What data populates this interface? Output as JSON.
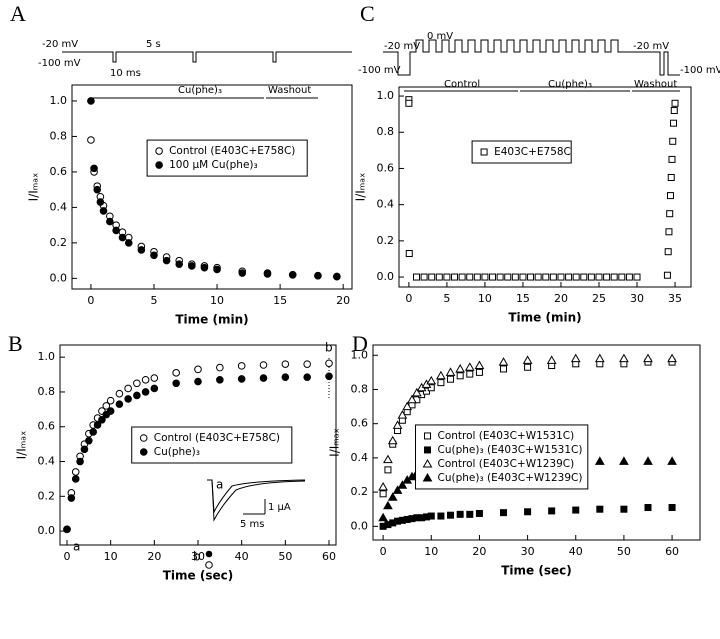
{
  "chart_data": [
    {
      "type": "scatter",
      "label": "A",
      "xlabel": "Time (min)",
      "ylabel": "I/Iₘₐₓ",
      "xlim": [
        -1.5,
        20.7
      ],
      "ylim": [
        -0.06,
        1.09
      ],
      "xticks": [
        0,
        5,
        10,
        15,
        20
      ],
      "yticks": [
        {
          "value": 0,
          "label": "0.0"
        },
        0.2,
        0.4,
        0.6,
        0.8,
        {
          "value": 1,
          "label": "1.0"
        }
      ],
      "legend": "upper right",
      "x": [
        0,
        0.25,
        0.5,
        0.75,
        1,
        1.5,
        2,
        2.5,
        3,
        4,
        5,
        6,
        7,
        8,
        9,
        10,
        12,
        14,
        16,
        18,
        19.5
      ],
      "series": [
        {
          "name": "Control (E403C+E758C)",
          "color": "#000000",
          "marker": "circle",
          "filled": false,
          "values": [
            0.78,
            0.6,
            0.52,
            0.46,
            0.41,
            0.35,
            0.3,
            0.26,
            0.23,
            0.18,
            0.15,
            0.12,
            0.1,
            0.08,
            0.07,
            0.06,
            0.04,
            0.03,
            0.02,
            0.015,
            0.01
          ]
        },
        {
          "name": "100 µM Cu(phe)₃",
          "color": "#000000",
          "marker": "circle",
          "filled": true,
          "values": [
            1.0,
            0.62,
            0.5,
            0.43,
            0.38,
            0.32,
            0.27,
            0.23,
            0.2,
            0.16,
            0.13,
            0.1,
            0.08,
            0.07,
            0.06,
            0.05,
            0.03,
            0.025,
            0.02,
            0.015,
            0.01
          ]
        }
      ],
      "annotations": [
        "-20 mV",
        "5 s",
        "-100 mV",
        "10 ms",
        "Cu(phe)₃",
        "Washout"
      ]
    },
    {
      "type": "scatter",
      "label": "B",
      "xlabel": "Time (sec)",
      "ylabel": "I/Iₘₐₓ",
      "xlim": [
        -1.6,
        61.6
      ],
      "ylim": [
        -0.08,
        1.07
      ],
      "xticks": [
        0,
        10,
        20,
        30,
        40,
        50,
        60
      ],
      "yticks": [
        {
          "value": 0,
          "label": "0.0"
        },
        0.2,
        0.4,
        0.6,
        0.8,
        {
          "value": 1,
          "label": "1.0"
        }
      ],
      "legend": "center right",
      "x": [
        0,
        1,
        2,
        3,
        4,
        5,
        6,
        7,
        8,
        9,
        10,
        12,
        14,
        16,
        18,
        20,
        25,
        30,
        35,
        40,
        45,
        50,
        55,
        60
      ],
      "series": [
        {
          "name": "Control (E403C+E758C)",
          "color": "#000000",
          "marker": "circle",
          "filled": false,
          "values": [
            0.01,
            0.22,
            0.34,
            0.43,
            0.5,
            0.56,
            0.61,
            0.65,
            0.69,
            0.72,
            0.75,
            0.79,
            0.82,
            0.85,
            0.87,
            0.88,
            0.91,
            0.93,
            0.94,
            0.95,
            0.955,
            0.96,
            0.96,
            0.965
          ]
        },
        {
          "name": "Cu(phe)₃",
          "color": "#000000",
          "marker": "circle",
          "filled": true,
          "values": [
            0.01,
            0.19,
            0.3,
            0.4,
            0.47,
            0.52,
            0.57,
            0.61,
            0.64,
            0.67,
            0.69,
            0.73,
            0.76,
            0.78,
            0.8,
            0.82,
            0.85,
            0.86,
            0.87,
            0.875,
            0.88,
            0.885,
            0.885,
            0.89
          ]
        }
      ],
      "annotations": [
        "a",
        "b",
        "a",
        "b",
        "1 µA",
        "5 ms"
      ]
    },
    {
      "type": "scatter",
      "label": "C",
      "xlabel": "Time (min)",
      "ylabel": "I/Iₘₐₓ",
      "xlim": [
        -1.3,
        37.1
      ],
      "ylim": [
        -0.055,
        1.05
      ],
      "xticks": [
        0,
        5,
        10,
        15,
        20,
        25,
        30,
        35
      ],
      "yticks": [
        {
          "value": 0,
          "label": "0.0"
        },
        0.2,
        0.4,
        0.6,
        0.8,
        {
          "value": 1,
          "label": "1.0"
        }
      ],
      "legend": "upper center",
      "x": [
        0,
        0,
        0.05,
        1,
        2,
        3,
        4,
        5,
        6,
        7,
        8,
        9,
        10,
        11,
        12,
        13,
        14,
        15,
        16,
        17,
        18,
        19,
        20,
        21,
        22,
        23,
        24,
        25,
        26,
        27,
        28,
        29,
        30,
        34.0,
        34.1,
        34.2,
        34.3,
        34.4,
        34.5,
        34.6,
        34.7,
        34.8,
        34.9,
        35.0
      ],
      "series": [
        {
          "name": "E403C+E758C",
          "color": "#000000",
          "marker": "square",
          "filled": false,
          "values": [
            0.98,
            0.96,
            0.13,
            0,
            0,
            0,
            0,
            0,
            0,
            0,
            0,
            0,
            0,
            0,
            0,
            0,
            0,
            0,
            0,
            0,
            0,
            0,
            0,
            0,
            0,
            0,
            0,
            0,
            0,
            0,
            0,
            0,
            0,
            0.01,
            0.14,
            0.25,
            0.35,
            0.45,
            0.55,
            0.65,
            0.75,
            0.85,
            0.92,
            0.96
          ]
        }
      ],
      "annotations": [
        "-20 mV",
        "0 mV",
        "-20 mV",
        "-100 mV",
        "-100 mV",
        "Control",
        "Cu(phe)₃",
        "Washout"
      ]
    },
    {
      "type": "scatter",
      "label": "D",
      "xlabel": "Time (sec)",
      "ylabel": "I/Iₘₐₓ",
      "xlim": [
        -2.1,
        65.8
      ],
      "ylim": [
        -0.08,
        1.06
      ],
      "xticks": [
        0,
        10,
        20,
        30,
        40,
        50,
        60
      ],
      "yticks": [
        {
          "value": 0,
          "label": "0.0"
        },
        0.2,
        0.4,
        0.6,
        0.8,
        {
          "value": 1,
          "label": "1.0"
        }
      ],
      "legend": "center left",
      "x": [
        0,
        1,
        2,
        3,
        4,
        5,
        6,
        7,
        8,
        9,
        10,
        12,
        14,
        16,
        18,
        20,
        25,
        30,
        35,
        40,
        45,
        50,
        55,
        60
      ],
      "series": [
        {
          "name": "Control (E403C+W1531C)",
          "color": "#000000",
          "marker": "square",
          "filled": false,
          "values": [
            0.19,
            0.33,
            0.48,
            0.56,
            0.62,
            0.67,
            0.71,
            0.74,
            0.77,
            0.79,
            0.81,
            0.84,
            0.86,
            0.88,
            0.89,
            0.9,
            0.92,
            0.93,
            0.94,
            0.95,
            0.95,
            0.95,
            0.96,
            0.96
          ]
        },
        {
          "name": "Cu(phe)₃ (E403C+W1531C)",
          "color": "#000000",
          "marker": "square",
          "filled": true,
          "values": [
            0,
            0.01,
            0.02,
            0.03,
            0.035,
            0.04,
            0.045,
            0.05,
            0.05,
            0.055,
            0.06,
            0.06,
            0.065,
            0.07,
            0.07,
            0.075,
            0.08,
            0.085,
            0.09,
            0.095,
            0.1,
            0.1,
            0.11,
            0.11
          ]
        },
        {
          "name": "Control (E403C+W1239C)",
          "color": "#000000",
          "marker": "triangle",
          "filled": false,
          "values": [
            0.23,
            0.39,
            0.5,
            0.59,
            0.65,
            0.7,
            0.74,
            0.78,
            0.81,
            0.83,
            0.85,
            0.88,
            0.9,
            0.92,
            0.93,
            0.94,
            0.96,
            0.97,
            0.97,
            0.98,
            0.98,
            0.98,
            0.98,
            0.98
          ]
        },
        {
          "name": "Cu(phe)₃ (E403C+W1239C)",
          "color": "#000000",
          "marker": "triangle",
          "filled": true,
          "values": [
            0.05,
            0.12,
            0.17,
            0.21,
            0.24,
            0.27,
            0.29,
            0.31,
            0.32,
            0.33,
            0.34,
            0.35,
            0.36,
            0.37,
            0.37,
            0.37,
            0.38,
            0.38,
            0.38,
            0.38,
            0.38,
            0.38,
            0.38,
            0.38
          ]
        }
      ]
    }
  ]
}
